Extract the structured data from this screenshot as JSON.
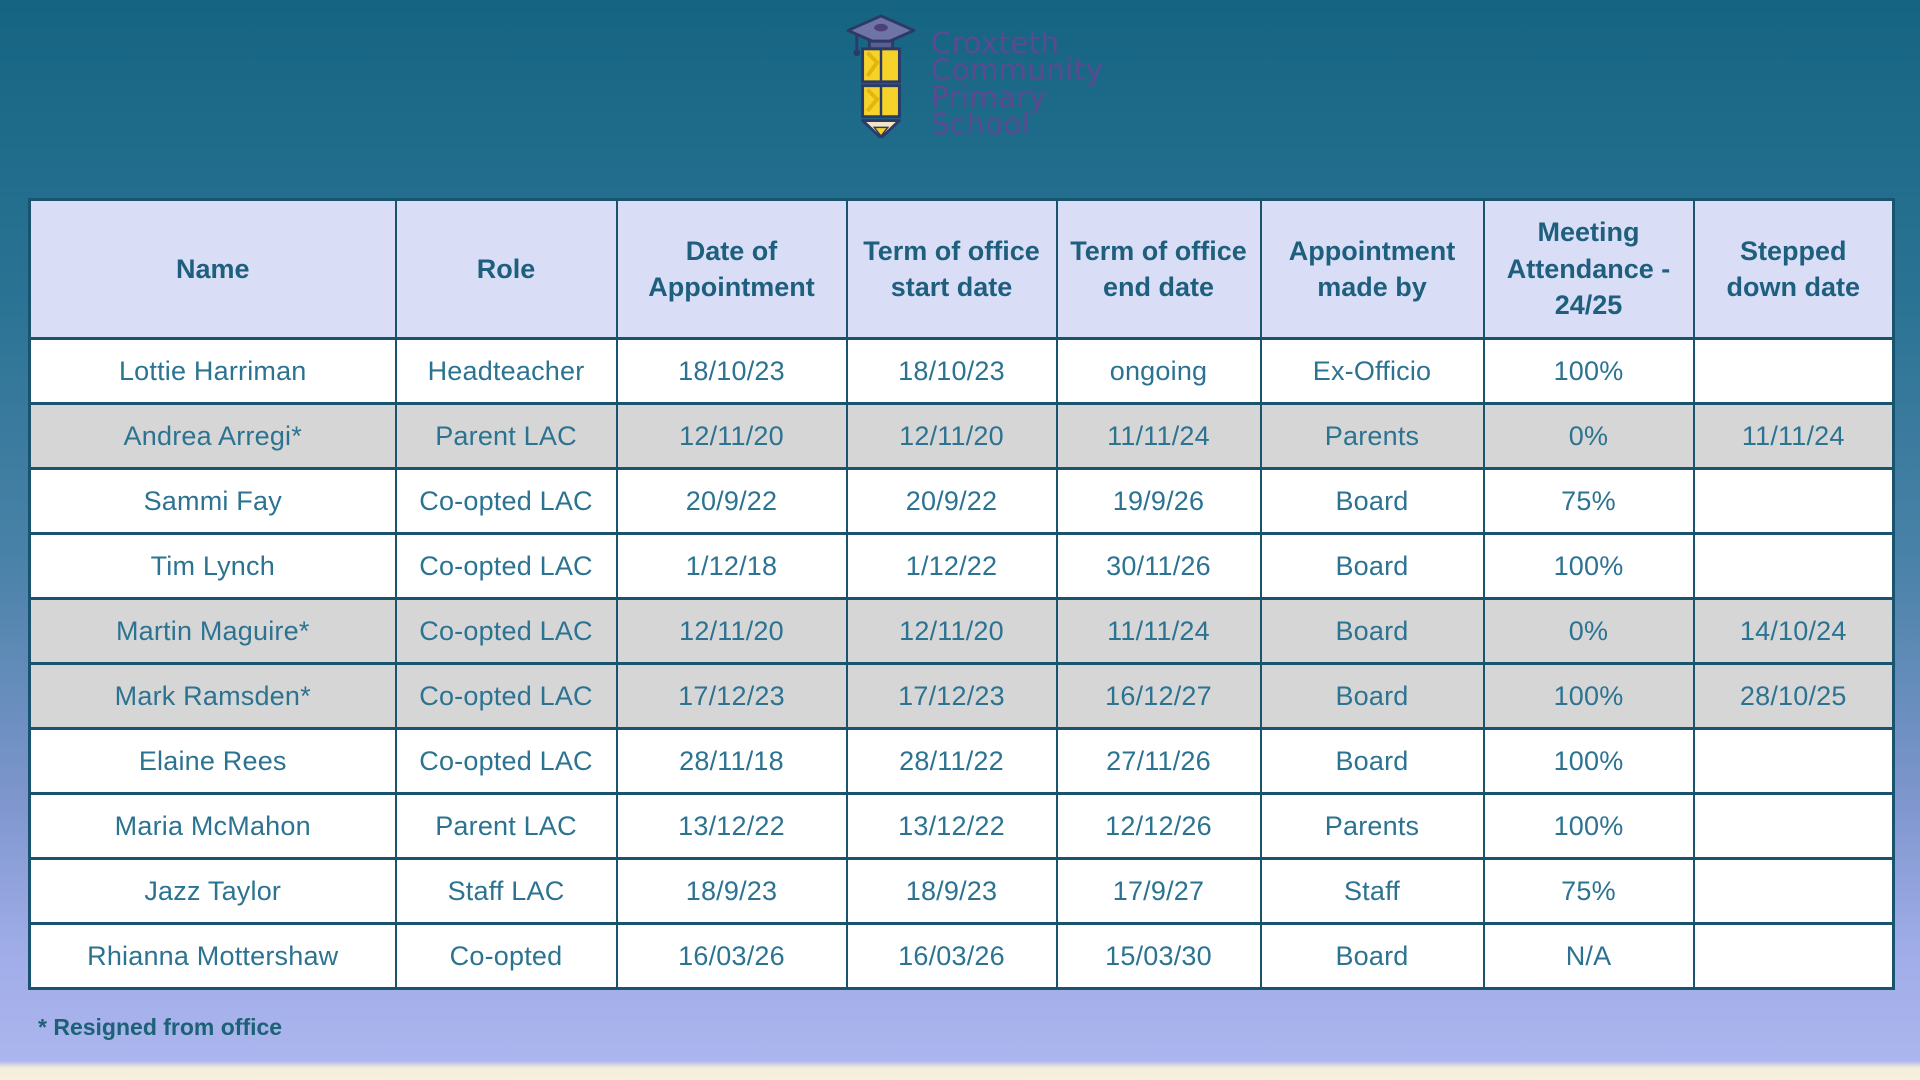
{
  "logo": {
    "icon": "pencil-graduation-cap-icon",
    "name_lines": [
      "Croxteth",
      "Community",
      "Primary",
      "School"
    ]
  },
  "table": {
    "columns": [
      "Name",
      "Role",
      "Date of Appointment",
      "Term of office start date",
      "Term of office end date",
      "Appointment made by",
      "Meeting Attendance - 24/25",
      "Stepped down date"
    ],
    "rows": [
      {
        "cells": [
          "Lottie Harriman",
          "Headteacher",
          "18/10/23",
          "18/10/23",
          "ongoing",
          "Ex-Officio",
          "100%",
          ""
        ],
        "resigned": false
      },
      {
        "cells": [
          "Andrea Arregi*",
          "Parent LAC",
          "12/11/20",
          "12/11/20",
          "11/11/24",
          "Parents",
          "0%",
          "11/11/24"
        ],
        "resigned": true
      },
      {
        "cells": [
          "Sammi Fay",
          "Co-opted LAC",
          "20/9/22",
          "20/9/22",
          "19/9/26",
          "Board",
          "75%",
          ""
        ],
        "resigned": false
      },
      {
        "cells": [
          "Tim Lynch",
          "Co-opted LAC",
          "1/12/18",
          "1/12/22",
          "30/11/26",
          "Board",
          "100%",
          ""
        ],
        "resigned": false
      },
      {
        "cells": [
          "Martin Maguire*",
          "Co-opted LAC",
          "12/11/20",
          "12/11/20",
          "11/11/24",
          "Board",
          "0%",
          "14/10/24"
        ],
        "resigned": true
      },
      {
        "cells": [
          "Mark Ramsden*",
          "Co-opted LAC",
          "17/12/23",
          "17/12/23",
          "16/12/27",
          "Board",
          "100%",
          "28/10/25"
        ],
        "resigned": true
      },
      {
        "cells": [
          "Elaine Rees",
          "Co-opted LAC",
          "28/11/18",
          "28/11/22",
          "27/11/26",
          "Board",
          "100%",
          ""
        ],
        "resigned": false
      },
      {
        "cells": [
          "Maria McMahon",
          "Parent LAC",
          "13/12/22",
          "13/12/22",
          "12/12/26",
          "Parents",
          "100%",
          ""
        ],
        "resigned": false
      },
      {
        "cells": [
          "Jazz Taylor",
          "Staff LAC",
          "18/9/23",
          "18/9/23",
          "17/9/27",
          "Staff",
          "75%",
          ""
        ],
        "resigned": false
      },
      {
        "cells": [
          "Rhianna Mottershaw",
          "Co-opted",
          "16/03/26",
          "16/03/26",
          "15/03/30",
          "Board",
          "N/A",
          ""
        ],
        "resigned": false
      }
    ]
  },
  "footnote": "* Resigned from office",
  "colors": {
    "background_top": "#156482",
    "background_bottom": "#abb5ee",
    "background_bottom_strip": "#f6f0de",
    "header_bg": "#d9def6",
    "row_bg": "#ffffff",
    "resigned_row_bg": "#d6d6d6",
    "border": "#19536e",
    "header_text": "#1e5f7e",
    "cell_text": "#2c7392",
    "logo_text": "#5b4a91",
    "pencil_yellow": "#f5d32b",
    "cap_purple": "#6e74a8",
    "footnote_text": "#1c6176"
  }
}
